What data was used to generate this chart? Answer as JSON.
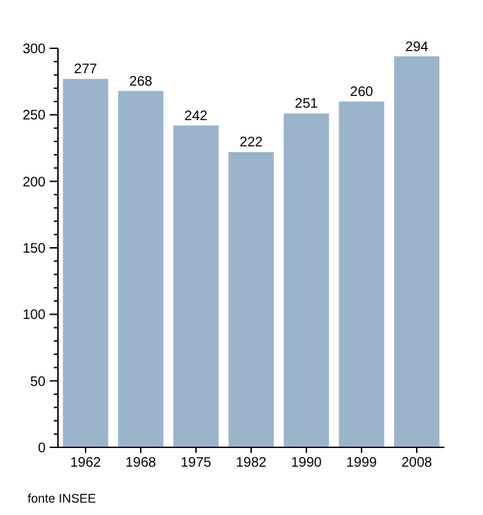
{
  "chart_data": {
    "type": "bar",
    "categories": [
      "1962",
      "1968",
      "1975",
      "1982",
      "1990",
      "1999",
      "2008"
    ],
    "values": [
      277,
      268,
      242,
      222,
      251,
      260,
      294
    ],
    "color": "#9ab4cc",
    "data_labels": true,
    "grid": false,
    "ylim": [
      0,
      300
    ],
    "yticks": [
      0,
      {
        "value": 10,
        "label": null
      },
      {
        "value": 20,
        "label": null
      },
      {
        "value": 30,
        "label": null
      },
      {
        "value": 40,
        "label": null
      },
      50,
      {
        "value": 60,
        "label": null
      },
      {
        "value": 70,
        "label": null
      },
      {
        "value": 80,
        "label": null
      },
      {
        "value": 90,
        "label": null
      },
      100,
      {
        "value": 110,
        "label": null
      },
      {
        "value": 120,
        "label": null
      },
      {
        "value": 130,
        "label": null
      },
      {
        "value": 140,
        "label": null
      },
      150,
      {
        "value": 160,
        "label": null
      },
      {
        "value": 170,
        "label": null
      },
      {
        "value": 180,
        "label": null
      },
      {
        "value": 190,
        "label": null
      },
      200,
      {
        "value": 210,
        "label": null
      },
      {
        "value": 220,
        "label": null
      },
      {
        "value": 230,
        "label": null
      },
      {
        "value": 240,
        "label": null
      },
      250,
      {
        "value": 260,
        "label": null
      },
      {
        "value": 270,
        "label": null
      },
      {
        "value": 280,
        "label": null
      },
      {
        "value": 290,
        "label": null
      },
      300
    ],
    "annotations": [
      "fonte INSEE"
    ]
  }
}
